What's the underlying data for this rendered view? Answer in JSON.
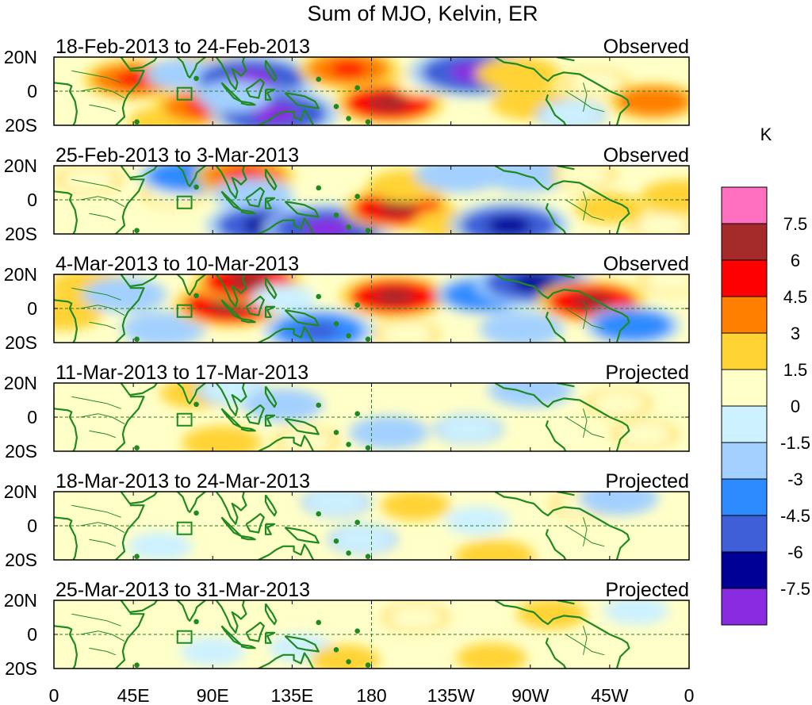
{
  "chart_data": {
    "type": "heatmap",
    "title": "Sum of MJO, Kelvin, ER",
    "units": "K",
    "xlabel": "",
    "ylabel": "",
    "x_ticks": [
      "0",
      "45E",
      "90E",
      "135E",
      "180",
      "135W",
      "90W",
      "45W",
      "0"
    ],
    "x_range_deg_east": [
      0,
      360
    ],
    "y_ticks": [
      "20N",
      "0",
      "20S"
    ],
    "y_range_deg": [
      -20,
      20
    ],
    "colorbar": {
      "label": "K",
      "levels": [
        "7.5",
        "6",
        "4.5",
        "3",
        "1.5",
        "0",
        "-1.5",
        "-3",
        "-4.5",
        "-6",
        "-7.5"
      ],
      "colors": [
        "#ff70c0",
        "#a52a2a",
        "#ff0000",
        "#ff7f00",
        "#ffd334",
        "#ffffc8",
        "#cdf1ff",
        "#a3d0ff",
        "#2d8bff",
        "#3e5fd8",
        "#000096",
        "#8a2be2"
      ]
    },
    "panels": [
      {
        "period": "18-Feb-2013 to 24-Feb-2013",
        "status": "Observed",
        "anomaly_centers": [
          {
            "lon": 45,
            "lat": 7,
            "value": 5
          },
          {
            "lon": 62,
            "lat": -18,
            "value": 2
          },
          {
            "lon": 85,
            "lat": -9,
            "value": 5
          },
          {
            "lon": 88,
            "lat": 15,
            "value": 3
          },
          {
            "lon": 73,
            "lat": 10,
            "value": -2.5
          },
          {
            "lon": 112,
            "lat": 7,
            "value": -8
          },
          {
            "lon": 125,
            "lat": -13,
            "value": -8
          },
          {
            "lon": 102,
            "lat": -3,
            "value": -2.5
          },
          {
            "lon": 167,
            "lat": 13,
            "value": 5
          },
          {
            "lon": 190,
            "lat": -7,
            "value": 6
          },
          {
            "lon": 210,
            "lat": 5,
            "value": 1.5
          },
          {
            "lon": 238,
            "lat": 11,
            "value": -8
          },
          {
            "lon": 263,
            "lat": 10,
            "value": 3.5
          },
          {
            "lon": 270,
            "lat": -7,
            "value": 3
          },
          {
            "lon": 293,
            "lat": -14,
            "value": -2
          },
          {
            "lon": 307,
            "lat": 5,
            "value": 1.5
          },
          {
            "lon": 340,
            "lat": -6,
            "value": 4
          }
        ]
      },
      {
        "period": "25-Feb-2013 to 3-Mar-2013",
        "status": "Observed",
        "anomaly_centers": [
          {
            "lon": 20,
            "lat": 12,
            "value": 1.5
          },
          {
            "lon": 68,
            "lat": 4,
            "value": 1.5
          },
          {
            "lon": 75,
            "lat": 14,
            "value": -4.5
          },
          {
            "lon": 108,
            "lat": 14,
            "value": 5
          },
          {
            "lon": 113,
            "lat": 3,
            "value": -3
          },
          {
            "lon": 120,
            "lat": -15,
            "value": -7
          },
          {
            "lon": 155,
            "lat": -17,
            "value": -8
          },
          {
            "lon": 195,
            "lat": -5,
            "value": 6
          },
          {
            "lon": 200,
            "lat": 8,
            "value": 3
          },
          {
            "lon": 223,
            "lat": -14,
            "value": 2
          },
          {
            "lon": 230,
            "lat": 15,
            "value": -4
          },
          {
            "lon": 268,
            "lat": 15,
            "value": -4
          },
          {
            "lon": 258,
            "lat": -15,
            "value": -7
          },
          {
            "lon": 300,
            "lat": 15,
            "value": 1.5
          },
          {
            "lon": 315,
            "lat": -5,
            "value": 2
          },
          {
            "lon": 355,
            "lat": 2,
            "value": 3
          },
          {
            "lon": 345,
            "lat": -15,
            "value": 1.5
          }
        ]
      },
      {
        "period": "4-Mar-2013 to 10-Mar-2013",
        "status": "Observed",
        "anomaly_centers": [
          {
            "lon": 20,
            "lat": 13,
            "value": 3
          },
          {
            "lon": 5,
            "lat": -3,
            "value": 3
          },
          {
            "lon": 40,
            "lat": 8,
            "value": -3.5
          },
          {
            "lon": 62,
            "lat": -12,
            "value": -3.5
          },
          {
            "lon": 100,
            "lat": 2,
            "value": 6.5
          },
          {
            "lon": 110,
            "lat": 16,
            "value": 6
          },
          {
            "lon": 130,
            "lat": 6,
            "value": -1.5
          },
          {
            "lon": 150,
            "lat": -13,
            "value": -6
          },
          {
            "lon": 193,
            "lat": 7,
            "value": 6
          },
          {
            "lon": 200,
            "lat": -15,
            "value": 1.5
          },
          {
            "lon": 243,
            "lat": 8,
            "value": -4.5
          },
          {
            "lon": 272,
            "lat": 15,
            "value": -7
          },
          {
            "lon": 305,
            "lat": 4,
            "value": 6
          },
          {
            "lon": 265,
            "lat": -12,
            "value": -3.5
          },
          {
            "lon": 328,
            "lat": -10,
            "value": -4.5
          },
          {
            "lon": 350,
            "lat": 17,
            "value": 1.5
          }
        ]
      },
      {
        "period": "11-Mar-2013 to 17-Mar-2013",
        "status": "Projected",
        "anomaly_centers": [
          {
            "lon": 80,
            "lat": 14,
            "value": 2
          },
          {
            "lon": 100,
            "lat": 16,
            "value": -2
          },
          {
            "lon": 95,
            "lat": -15,
            "value": 3
          },
          {
            "lon": 130,
            "lat": 7,
            "value": -3
          },
          {
            "lon": 143,
            "lat": -14,
            "value": 1.5
          },
          {
            "lon": 190,
            "lat": -9,
            "value": -3
          },
          {
            "lon": 235,
            "lat": -7,
            "value": -2
          },
          {
            "lon": 270,
            "lat": 16,
            "value": -3.5
          },
          {
            "lon": 320,
            "lat": 8,
            "value": 1.5
          },
          {
            "lon": 335,
            "lat": -10,
            "value": 1.5
          },
          {
            "lon": 10,
            "lat": 0,
            "value": 1
          }
        ]
      },
      {
        "period": "18-Mar-2013 to 24-Mar-2013",
        "status": "Projected",
        "anomaly_centers": [
          {
            "lon": 60,
            "lat": -12,
            "value": -1.5
          },
          {
            "lon": 85,
            "lat": 12,
            "value": 1
          },
          {
            "lon": 160,
            "lat": 14,
            "value": -2
          },
          {
            "lon": 175,
            "lat": -8,
            "value": -2
          },
          {
            "lon": 205,
            "lat": 12,
            "value": 2
          },
          {
            "lon": 250,
            "lat": -18,
            "value": 3
          },
          {
            "lon": 300,
            "lat": 13,
            "value": 1.5
          },
          {
            "lon": 320,
            "lat": 16,
            "value": -3
          },
          {
            "lon": 240,
            "lat": 3,
            "value": -1.5
          }
        ]
      },
      {
        "period": "25-Mar-2013 to 31-Mar-2013",
        "status": "Projected",
        "anomaly_centers": [
          {
            "lon": 40,
            "lat": 10,
            "value": 1
          },
          {
            "lon": 90,
            "lat": -10,
            "value": -1.5
          },
          {
            "lon": 140,
            "lat": -8,
            "value": -1.5
          },
          {
            "lon": 165,
            "lat": -15,
            "value": 2
          },
          {
            "lon": 205,
            "lat": 10,
            "value": 1.5
          },
          {
            "lon": 248,
            "lat": -14,
            "value": 2
          },
          {
            "lon": 282,
            "lat": 12,
            "value": 2
          },
          {
            "lon": 330,
            "lat": 14,
            "value": -1.5
          }
        ]
      }
    ]
  }
}
